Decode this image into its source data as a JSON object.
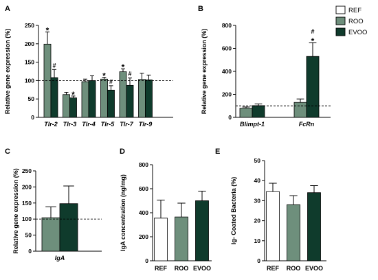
{
  "colors": {
    "REF": "#ffffff",
    "ROO": "#6e8f7c",
    "EVOO": "#0f3b2c",
    "outline": "#000000"
  },
  "legend": [
    {
      "name": "REF",
      "color": "#ffffff"
    },
    {
      "name": "ROO",
      "color": "#6e8f7c"
    },
    {
      "name": "EVOO",
      "color": "#0f3b2c"
    }
  ],
  "chart_data": [
    {
      "panel": "A",
      "type": "bar",
      "ylabel": "Relative gene expression (%)",
      "yticks": [
        0,
        50,
        100,
        150,
        200,
        250
      ],
      "ylim": [
        0,
        250
      ],
      "reference_line": 100,
      "categories": [
        "Tlr-2",
        "Tlr-3",
        "Tlr-4",
        "Tlr-5",
        "Tlr-7",
        "Tlr-9"
      ],
      "series": [
        {
          "name": "ROO",
          "values": [
            199,
            62,
            97,
            104,
            124,
            103
          ],
          "errors": [
            33,
            6,
            7,
            5,
            8,
            17
          ],
          "marks": [
            "*",
            "",
            "",
            "*",
            "*",
            ""
          ]
        },
        {
          "name": "EVOO",
          "values": [
            108,
            53,
            100,
            74,
            87,
            102
          ],
          "errors": [
            22,
            5,
            13,
            12,
            20,
            13
          ],
          "marks": [
            "#",
            "*",
            "",
            "#",
            "#",
            ""
          ]
        }
      ]
    },
    {
      "panel": "B",
      "type": "bar",
      "ylabel": "Relative gene expression (%)",
      "yticks": [
        0,
        200,
        400,
        600,
        800
      ],
      "ylim": [
        0,
        800
      ],
      "reference_line": 100,
      "categories": [
        "Blimpt-1",
        "FcRn"
      ],
      "series": [
        {
          "name": "ROO",
          "values": [
            80,
            130
          ],
          "errors": [
            10,
            30
          ],
          "marks": [
            "",
            ""
          ]
        },
        {
          "name": "EVOO",
          "values": [
            102,
            530
          ],
          "errors": [
            15,
            120
          ],
          "marks": [
            "",
            "#*"
          ]
        }
      ]
    },
    {
      "panel": "C",
      "type": "bar",
      "ylabel": "Relative gene expression (%)",
      "yticks": [
        0,
        50,
        100,
        150,
        200,
        250
      ],
      "ylim": [
        0,
        250
      ],
      "reference_line": 100,
      "categories": [
        "IgA"
      ],
      "series": [
        {
          "name": "ROO",
          "values": [
            104
          ],
          "errors": [
            34
          ],
          "marks": [
            ""
          ]
        },
        {
          "name": "EVOO",
          "values": [
            148
          ],
          "errors": [
            55
          ],
          "marks": [
            ""
          ]
        }
      ]
    },
    {
      "panel": "D",
      "type": "bar",
      "ylabel": "IgA concentration (ng/mg)",
      "yticks": [
        0,
        200,
        400,
        600,
        800
      ],
      "ylim": [
        0,
        800
      ],
      "categories": [
        "REF",
        "ROO",
        "EVOO"
      ],
      "values": [
        355,
        365,
        500
      ],
      "errors": [
        150,
        115,
        80
      ]
    },
    {
      "panel": "E",
      "type": "bar",
      "ylabel": "Ig- Coated Bacteria (%)",
      "yticks": [
        0,
        10,
        20,
        30,
        40,
        50
      ],
      "ylim": [
        0,
        50
      ],
      "categories": [
        "REF",
        "ROO",
        "EVOO"
      ],
      "values": [
        34.5,
        28,
        34
      ],
      "errors": [
        4.2,
        4.5,
        3.5
      ]
    }
  ]
}
